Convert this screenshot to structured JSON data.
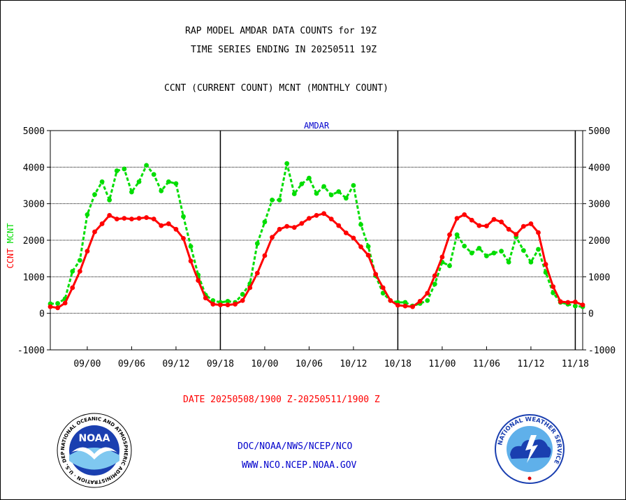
{
  "title_line1": "RAP MODEL AMDAR DATA COUNTS for 19Z",
  "title_line2": "TIME SERIES ENDING IN 20250511 19Z",
  "title_line3": "CCNT (CURRENT COUNT) MCNT (MONTHLY COUNT)",
  "date_range": "DATE 20250508/1900 Z-20250511/1900 Z",
  "footer_line1": "DOC/NOAA/NWS/NCEP/NCO",
  "footer_line2": "WWW.NCO.NCEP.NOAA.GOV",
  "logos": {
    "left": {
      "name": "noaa-logo",
      "center_text": "NOAA",
      "ring_text": "NATIONAL OCEANIC AND ATMOSPHERIC ADMINISTRATION · U.S. DEPARTMENT OF COMMERCE"
    },
    "right": {
      "name": "nws-logo",
      "ring_text": "NATIONAL WEATHER SERVICE"
    }
  },
  "colors": {
    "ccnt": "#ff0000",
    "mcnt": "#00dd00",
    "panel_title": "#0000cc",
    "footer": "#0000cc",
    "date": "#ff0000"
  },
  "chart_data": {
    "type": "line",
    "title": "AMDAR",
    "ylabel_ccnt": "CCNT",
    "ylabel_mcnt": "MCNT",
    "ylim": [
      -1000,
      5000
    ],
    "yticks": [
      -1000,
      0,
      1000,
      2000,
      3000,
      4000,
      5000
    ],
    "yticklabels": [
      "-1000",
      "0",
      "1000",
      "2000",
      "3000",
      "4000",
      "5000"
    ],
    "xticklabels": [
      "09/00",
      "09/06",
      "09/12",
      "09/18",
      "10/00",
      "10/06",
      "10/12",
      "10/18",
      "11/00",
      "11/06",
      "11/12",
      "11/18"
    ],
    "xtick_hours": [
      5,
      11,
      17,
      23,
      29,
      35,
      41,
      47,
      53,
      59,
      65,
      71
    ],
    "xlim_hours": [
      0,
      72
    ],
    "day_boundaries_hours": [
      23,
      47,
      71
    ],
    "grid": true,
    "series": [
      {
        "name": "CCNT",
        "values": [
          180,
          150,
          280,
          700,
          1150,
          1700,
          2230,
          2450,
          2680,
          2580,
          2600,
          2580,
          2600,
          2620,
          2580,
          2400,
          2450,
          2300,
          2050,
          1430,
          900,
          420,
          250,
          230,
          230,
          250,
          350,
          700,
          1100,
          1580,
          2080,
          2300,
          2380,
          2350,
          2460,
          2600,
          2680,
          2730,
          2580,
          2400,
          2200,
          2060,
          1820,
          1590,
          1070,
          700,
          350,
          220,
          200,
          180,
          330,
          550,
          1030,
          1540,
          2150,
          2600,
          2700,
          2550,
          2400,
          2390,
          2570,
          2500,
          2300,
          2160,
          2380,
          2450,
          2210,
          1340,
          730,
          320,
          300,
          310,
          230
        ]
      },
      {
        "name": "MCNT",
        "values": [
          260,
          270,
          400,
          1150,
          1450,
          2700,
          3250,
          3600,
          3100,
          3900,
          3950,
          3320,
          3600,
          4050,
          3800,
          3350,
          3600,
          3550,
          2650,
          1830,
          1050,
          500,
          350,
          300,
          330,
          300,
          520,
          810,
          1910,
          2500,
          3100,
          3100,
          4100,
          3270,
          3540,
          3700,
          3280,
          3470,
          3240,
          3330,
          3150,
          3500,
          2430,
          1830,
          1030,
          550,
          350,
          300,
          300,
          200,
          270,
          350,
          800,
          1400,
          1300,
          2150,
          1840,
          1650,
          1780,
          1570,
          1650,
          1700,
          1400,
          2090,
          1720,
          1400,
          1750,
          1120,
          560,
          300,
          250,
          200,
          180
        ]
      }
    ]
  }
}
